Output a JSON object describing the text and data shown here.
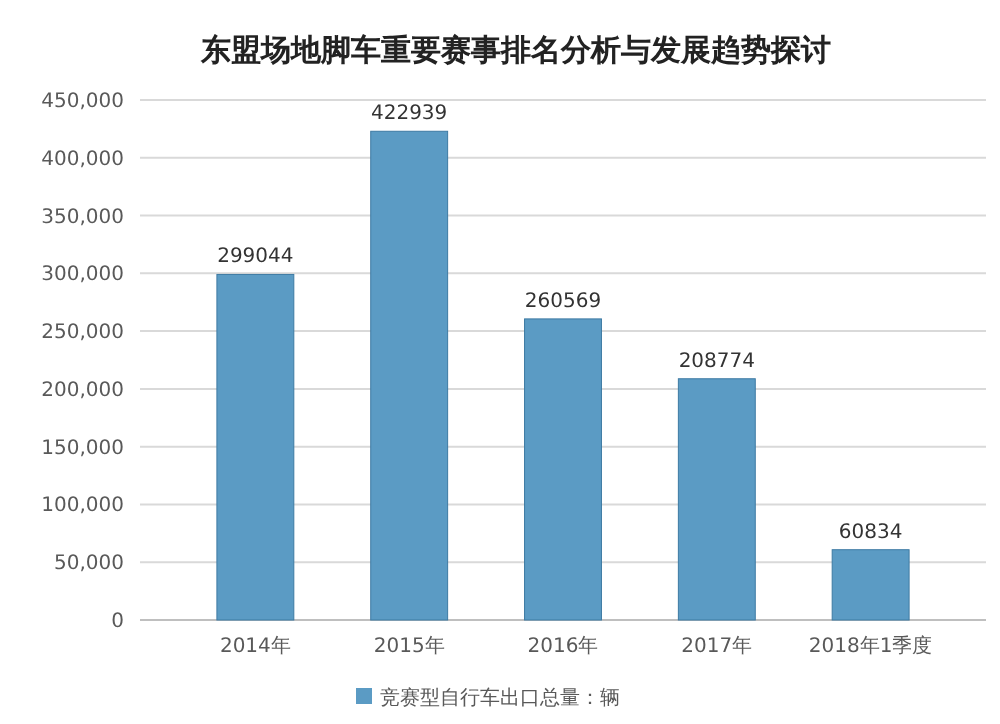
{
  "chart_data": {
    "type": "bar",
    "title": "东盟场地脚车重要赛事排名分析与发展趋势探讨",
    "categories": [
      "2014年",
      "2015年",
      "2016年",
      "2017年",
      "2018年1季度"
    ],
    "series": [
      {
        "name": "竞赛型自行车出口总量：辆",
        "color": "#5b9bc4",
        "values": [
          299044,
          422939,
          260569,
          208774,
          60834
        ]
      }
    ],
    "ylim": [
      0,
      450000
    ],
    "yticks": [
      {
        "value": 0,
        "label": "0"
      },
      {
        "value": 50000,
        "label": "50,000"
      },
      {
        "value": 100000,
        "label": "100,000"
      },
      {
        "value": 150000,
        "label": "150,000"
      },
      {
        "value": 200000,
        "label": "200,000"
      },
      {
        "value": 250000,
        "label": "250,000"
      },
      {
        "value": 300000,
        "label": "300,000"
      },
      {
        "value": 350000,
        "label": "350,000"
      },
      {
        "value": 400000,
        "label": "400,000"
      },
      {
        "value": 450000,
        "label": "450,000"
      }
    ],
    "grid": "y",
    "data_labels": true,
    "legend": "bottom"
  }
}
